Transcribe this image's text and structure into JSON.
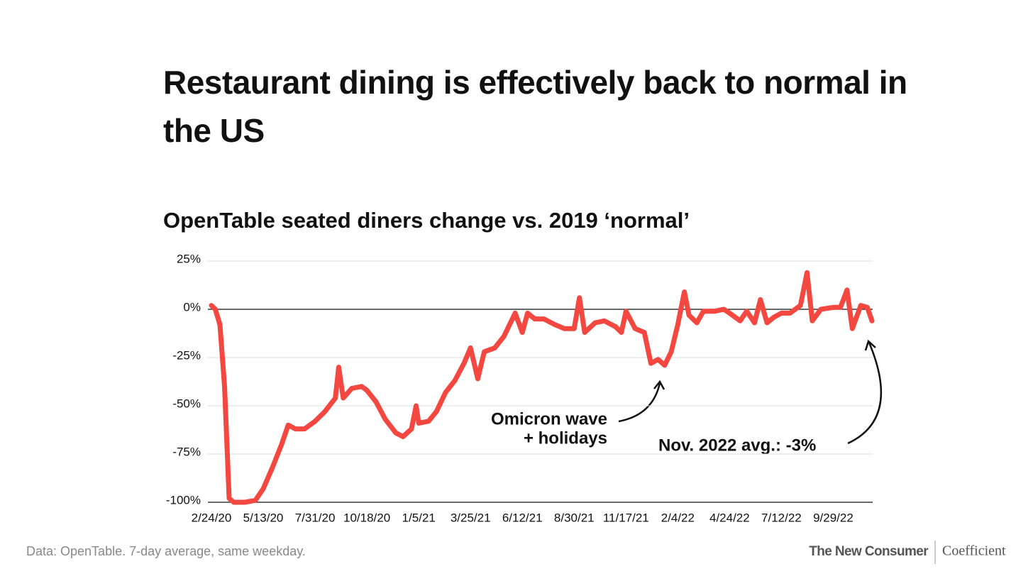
{
  "chart_data": {
    "type": "line",
    "title": "Restaurant dining is effectively back to normal in the US",
    "subtitle": "OpenTable seated diners change vs. 2019 ‘normal’",
    "annotations": [
      "Omicron wave",
      "+ holidays",
      "Nov. 2022 avg.:  -3%"
    ],
    "source": "Data: OpenTable. 7-day average, same weekday.",
    "brands": [
      "The New Consumer",
      "Coefficient"
    ],
    "x": [
      "2/24/20",
      "3/1/20",
      "3/8/20",
      "3/15/20",
      "3/22/20",
      "3/29/20",
      "4/15/20",
      "5/1/20",
      "5/13/20",
      "5/27/20",
      "6/10/20",
      "6/20/20",
      "7/1/20",
      "7/15/20",
      "7/31/20",
      "8/15/20",
      "8/31/20",
      "9/5/20",
      "9/12/20",
      "9/25/20",
      "10/10/20",
      "10/18/20",
      "11/1/20",
      "11/15/20",
      "12/1/20",
      "12/12/20",
      "12/25/20",
      "1/1/21",
      "1/5/21",
      "1/20/21",
      "2/1/21",
      "2/15/21",
      "3/1/21",
      "3/15/21",
      "3/25/21",
      "4/5/21",
      "4/15/21",
      "5/1/21",
      "5/15/21",
      "6/1/21",
      "6/12/21",
      "6/20/21",
      "7/1/21",
      "7/15/21",
      "8/1/21",
      "8/15/21",
      "8/30/21",
      "9/7/21",
      "9/15/21",
      "10/1/21",
      "10/15/21",
      "11/1/21",
      "11/10/21",
      "11/17/21",
      "12/1/21",
      "12/15/21",
      "12/25/21",
      "1/5/22",
      "1/15/22",
      "1/25/22",
      "2/4/22",
      "2/14/22",
      "2/21/22",
      "3/5/22",
      "3/15/22",
      "4/1/22",
      "4/15/22",
      "4/24/22",
      "5/10/22",
      "5/20/22",
      "6/1/22",
      "6/10/22",
      "6/20/22",
      "7/1/22",
      "7/12/22",
      "7/25/22",
      "8/10/22",
      "8/20/22",
      "8/28/22",
      "9/10/22",
      "9/29/22",
      "10/10/22",
      "10/20/22",
      "10/28/22",
      "11/10/22",
      "11/20/22",
      "11/27/22"
    ],
    "series": [
      {
        "name": "Seated diners",
        "color": "#f4473f",
        "values": [
          2,
          0,
          -8,
          -40,
          -98,
          -100,
          -100,
          -99,
          -93,
          -82,
          -70,
          -60,
          -62,
          -62,
          -58,
          -53,
          -46,
          -30,
          -46,
          -41,
          -40,
          -42,
          -48,
          -57,
          -64,
          -66,
          -62,
          -50,
          -59,
          -58,
          -53,
          -43,
          -37,
          -28,
          -20,
          -36,
          -22,
          -20,
          -14,
          -2,
          -12,
          -2,
          -5,
          -5,
          -8,
          -10,
          -10,
          6,
          -12,
          -7,
          -6,
          -9,
          -12,
          -1,
          -10,
          -12,
          -28,
          -26,
          -29,
          -22,
          -8,
          9,
          -3,
          -7,
          -1,
          -1,
          0,
          -2,
          -6,
          -1,
          -7,
          5,
          -7,
          -4,
          -2,
          -2,
          2,
          19,
          -6,
          0,
          1,
          1,
          10,
          -10,
          2,
          1,
          -6
        ]
      }
    ],
    "xlim": [
      "2/24/20",
      "11/27/22"
    ],
    "xticks": [
      "2/24/20",
      "5/13/20",
      "7/31/20",
      "10/18/20",
      "1/5/21",
      "3/25/21",
      "6/12/21",
      "8/30/21",
      "11/17/21",
      "2/4/22",
      "4/24/22",
      "7/12/22",
      "9/29/22"
    ],
    "ylim": [
      -100,
      25
    ],
    "yticks": [
      {
        "value": 25,
        "label": "25%"
      },
      {
        "value": 0,
        "label": "0%"
      },
      {
        "value": -25,
        "label": "-25%"
      },
      {
        "value": -50,
        "label": "-50%"
      },
      {
        "value": -75,
        "label": "-75%"
      },
      {
        "value": -100,
        "label": "-100%"
      }
    ],
    "grid": true
  }
}
